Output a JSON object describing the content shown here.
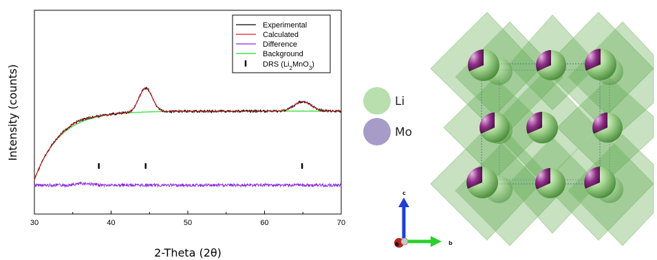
{
  "chart_data": {
    "type": "line",
    "xlabel": "2-Theta (2θ)",
    "ylabel": "Intensity (counts)",
    "xlim": [
      30,
      70
    ],
    "xticks": [
      30,
      40,
      50,
      60,
      70
    ],
    "grid": false,
    "legend_position": "top-right",
    "series": [
      {
        "name": "Experimental",
        "color": "#000000"
      },
      {
        "name": "Calculated",
        "color": "#e31a1c"
      },
      {
        "name": "Difference",
        "color": "#8a2be2"
      },
      {
        "name": "Background",
        "color": "#22dd22"
      }
    ],
    "reflection_marker": {
      "label_parts": [
        "DRS (Li",
        "2",
        "MnO",
        "3",
        ")"
      ],
      "positions": [
        38.4,
        44.5,
        64.9
      ]
    }
  },
  "structure": {
    "legend": [
      {
        "label": "Li",
        "color": "#b9dfae"
      },
      {
        "label": "Mo",
        "color": "#a79cc7"
      }
    ],
    "axes": {
      "c": "c",
      "b": "b"
    }
  }
}
